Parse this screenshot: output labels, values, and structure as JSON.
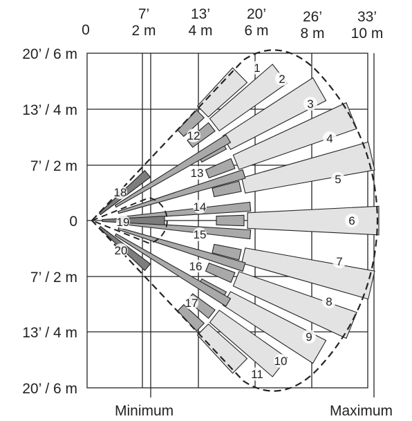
{
  "axes": {
    "x_labels": [
      {
        "top": "0",
        "bottom": ""
      },
      {
        "top": "7’",
        "bottom": "2 m"
      },
      {
        "top": "13’",
        "bottom": "4 m"
      },
      {
        "top": "20’",
        "bottom": "6 m"
      },
      {
        "top": "26’",
        "bottom": "8 m"
      },
      {
        "top": "33’",
        "bottom": "10 m"
      }
    ],
    "y_labels": [
      "20’ / 6 m",
      "13’ / 4 m",
      "7’ / 2 m",
      "0",
      "7’ / 2 m",
      "13’ / 4 m",
      "20’ / 6 m"
    ],
    "minimum_label": "Minimum",
    "maximum_label": "Maximum"
  },
  "zones": [
    "1",
    "2",
    "3",
    "4",
    "5",
    "6",
    "7",
    "8",
    "9",
    "10",
    "11",
    "12",
    "13",
    "14",
    "15",
    "16",
    "17",
    "18",
    "19",
    "20"
  ],
  "colors": {
    "long_zone": "#e3e3e3",
    "mid_zone": "#a9a9a9",
    "short_zone": "#7d7d7d",
    "outline": "#222222"
  }
}
